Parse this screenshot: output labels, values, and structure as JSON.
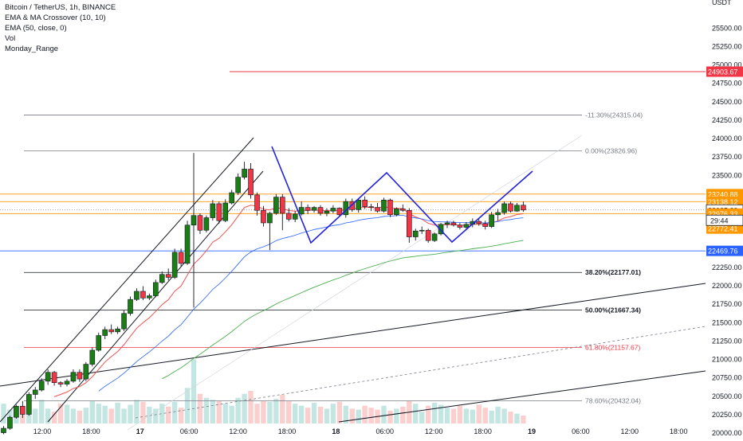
{
  "legend": {
    "symbol_line": "Bitcoin / TetherUS, 1h, BINANCE",
    "ema_cross": "EMA & MA Crossover (10, 10)",
    "ema50": "EMA (50, close, 0)",
    "vol": "Vol",
    "monday": "Monday_Range"
  },
  "colors": {
    "up": "#26a69a",
    "down": "#ef5350",
    "candle_up": "#26a69a",
    "candle_down": "#ef5350",
    "orange": "#ff9800",
    "blue": "#2962ff",
    "red_line": "#f23645",
    "green_ema": "#4caf50",
    "pattern": "#2222dd"
  },
  "chart_data": {
    "type": "candlestick",
    "symbol": "Bitcoin / TetherUS",
    "interval": "1h",
    "exchange": "BINANCE",
    "y_unit": "USDT",
    "ylim": [
      19950,
      25600
    ],
    "y_ticks": [
      20000,
      20250,
      20500,
      20750,
      21000,
      21250,
      21500,
      21750,
      22000,
      22250,
      22500,
      22750,
      23000,
      23250,
      23500,
      23750,
      24000,
      24250,
      24500,
      24750,
      25000,
      25250,
      25500
    ],
    "y_tick_labels": [
      "20000.00",
      "20250.00",
      "20500.00",
      "20750.00",
      "21000.00",
      "21250.00",
      "21500.00",
      "21750.00",
      "22000.00",
      "22250.00",
      "22500.00",
      "22750.00",
      "23000.00",
      "23250.00",
      "23500.00",
      "23750.00",
      "24000.00",
      "24250.00",
      "24500.00",
      "24750.00",
      "25000.00",
      "25250.00",
      "25500.00"
    ],
    "x_labels": [
      "12:00",
      "18:00",
      "17",
      "06:00",
      "12:00",
      "18:00",
      "18",
      "06:00",
      "12:00",
      "18:00",
      "19",
      "06:00",
      "12:00",
      "18:00"
    ],
    "bold_x_labels": [
      "17",
      "18",
      "19"
    ],
    "price_labels": [
      {
        "value": 24903.67,
        "label": "24903.67",
        "color": "#f23645"
      },
      {
        "value": 23240.88,
        "label": "23240.88",
        "color": "#ff9800"
      },
      {
        "value": 23138.12,
        "label": "23138.12",
        "color": "#ff9800"
      },
      {
        "value": 23025.39,
        "label": "23025.39",
        "color": "#131722"
      },
      {
        "value": 22976.33,
        "label": "22976.33",
        "color": "#ff9800"
      },
      {
        "value": 22772.41,
        "label": "22772.41",
        "color": "#ff9800"
      },
      {
        "value": 22469.76,
        "label": "22469.76",
        "color": "#2962ff"
      }
    ],
    "countdown": "29:44",
    "fib_levels": [
      {
        "label": "-11.30%(24315.04)",
        "value": 24315.04,
        "color": "#787b86"
      },
      {
        "label": "0.00%(23826.96)",
        "value": 23826.96,
        "color": "#787b86"
      },
      {
        "label": "38.20%(22177.01)",
        "value": 22177.01,
        "color": "#131722"
      },
      {
        "label": "50.00%(21667.34)",
        "value": 21667.34,
        "color": "#131722"
      },
      {
        "label": "61.80%(21157.67)",
        "value": 21157.67,
        "color": "#f23645"
      },
      {
        "label": "78.60%(20432.04)",
        "value": 20432.04,
        "color": "#787b86"
      }
    ],
    "candles": [
      [
        20000,
        20090,
        19980,
        20060
      ],
      [
        20060,
        20230,
        20040,
        20210
      ],
      [
        20210,
        20380,
        20190,
        20360
      ],
      [
        20360,
        20430,
        20200,
        20250
      ],
      [
        20250,
        20550,
        20230,
        20520
      ],
      [
        20520,
        20620,
        20460,
        20580
      ],
      [
        20580,
        20740,
        20560,
        20700
      ],
      [
        20700,
        20860,
        20650,
        20820
      ],
      [
        20820,
        20840,
        20640,
        20680
      ],
      [
        20680,
        20700,
        20620,
        20660
      ],
      [
        20660,
        20730,
        20630,
        20700
      ],
      [
        20700,
        20860,
        20680,
        20820
      ],
      [
        20820,
        20860,
        20690,
        20730
      ],
      [
        20730,
        20960,
        20700,
        20930
      ],
      [
        20930,
        21160,
        20900,
        21120
      ],
      [
        21120,
        21360,
        21100,
        21320
      ],
      [
        21320,
        21440,
        21270,
        21400
      ],
      [
        21400,
        21470,
        21340,
        21370
      ],
      [
        21370,
        21440,
        21340,
        21410
      ],
      [
        21410,
        21660,
        21380,
        21620
      ],
      [
        21620,
        21850,
        21590,
        21810
      ],
      [
        21810,
        21960,
        21790,
        21920
      ],
      [
        21920,
        21990,
        21800,
        21830
      ],
      [
        21830,
        21890,
        21800,
        21860
      ],
      [
        21860,
        22080,
        21840,
        22040
      ],
      [
        22040,
        22190,
        22020,
        22150
      ],
      [
        22150,
        22230,
        22070,
        22110
      ],
      [
        22110,
        22500,
        22090,
        22450
      ],
      [
        22450,
        22500,
        22260,
        22300
      ],
      [
        22300,
        22880,
        22280,
        22820
      ],
      [
        22820,
        23800,
        21700,
        22950
      ],
      [
        22950,
        22980,
        22700,
        22750
      ],
      [
        22750,
        22950,
        22720,
        22920
      ],
      [
        22920,
        23160,
        22880,
        23110
      ],
      [
        23110,
        23140,
        22840,
        22880
      ],
      [
        22880,
        23170,
        22860,
        23120
      ],
      [
        23120,
        23300,
        23100,
        23260
      ],
      [
        23260,
        23520,
        23230,
        23470
      ],
      [
        23470,
        23680,
        23440,
        23580
      ],
      [
        23580,
        23660,
        23180,
        23230
      ],
      [
        23230,
        23260,
        22950,
        23020
      ],
      [
        23020,
        23080,
        22800,
        22850
      ],
      [
        22850,
        23000,
        22480,
        22980
      ],
      [
        22980,
        23240,
        22960,
        23200
      ],
      [
        23200,
        23240,
        22750,
        22980
      ],
      [
        22980,
        23050,
        22870,
        22900
      ],
      [
        22900,
        23010,
        22860,
        22970
      ],
      [
        22970,
        23140,
        22950,
        23060
      ],
      [
        23060,
        23100,
        22970,
        23020
      ],
      [
        23020,
        23080,
        22990,
        23060
      ],
      [
        23060,
        23090,
        22950,
        22980
      ],
      [
        22980,
        23050,
        22940,
        23010
      ],
      [
        23010,
        23090,
        22980,
        23050
      ],
      [
        23050,
        23060,
        22940,
        22960
      ],
      [
        22960,
        23180,
        22920,
        23140
      ],
      [
        23140,
        23180,
        23000,
        23030
      ],
      [
        23030,
        23180,
        22990,
        23160
      ],
      [
        23160,
        23210,
        23040,
        23070
      ],
      [
        23070,
        23110,
        23010,
        23060
      ],
      [
        23060,
        23120,
        22990,
        23010
      ],
      [
        23010,
        23190,
        22990,
        23160
      ],
      [
        23160,
        23180,
        22930,
        22960
      ],
      [
        22960,
        23060,
        22940,
        23040
      ],
      [
        23040,
        23100,
        23000,
        23020
      ],
      [
        23020,
        23050,
        22580,
        22660
      ],
      [
        22660,
        22770,
        22610,
        22740
      ],
      [
        22740,
        22800,
        22700,
        22750
      ],
      [
        22750,
        22770,
        22580,
        22610
      ],
      [
        22610,
        22720,
        22590,
        22700
      ],
      [
        22700,
        22850,
        22680,
        22830
      ],
      [
        22830,
        22880,
        22780,
        22850
      ],
      [
        22850,
        22880,
        22800,
        22820
      ],
      [
        22820,
        22850,
        22760,
        22790
      ],
      [
        22790,
        22860,
        22770,
        22830
      ],
      [
        22830,
        22910,
        22790,
        22870
      ],
      [
        22870,
        22900,
        22810,
        22840
      ],
      [
        22840,
        22880,
        22760,
        22800
      ],
      [
        22800,
        23000,
        22780,
        22960
      ],
      [
        22960,
        23040,
        22880,
        22990
      ],
      [
        22990,
        23140,
        22960,
        23110
      ],
      [
        23110,
        23140,
        22990,
        23010
      ],
      [
        23010,
        23120,
        23000,
        23090
      ],
      [
        23090,
        23140,
        23000,
        23025
      ]
    ],
    "volumes": [
      40,
      28,
      26,
      22,
      44,
      30,
      48,
      30,
      24,
      40,
      38,
      30,
      26,
      32,
      46,
      40,
      36,
      30,
      42,
      30,
      38,
      48,
      44,
      34,
      30,
      40,
      34,
      44,
      32,
      72,
      130,
      60,
      52,
      48,
      46,
      40,
      36,
      52,
      60,
      66,
      40,
      46,
      44,
      50,
      58,
      46,
      40,
      36,
      32,
      42,
      34,
      30,
      40,
      44,
      36,
      30,
      28,
      36,
      32,
      28,
      36,
      26,
      30,
      34,
      46,
      40,
      24,
      36,
      42,
      38,
      32,
      30,
      36,
      30,
      28,
      38,
      32,
      26,
      34,
      30,
      24,
      20,
      16
    ]
  }
}
